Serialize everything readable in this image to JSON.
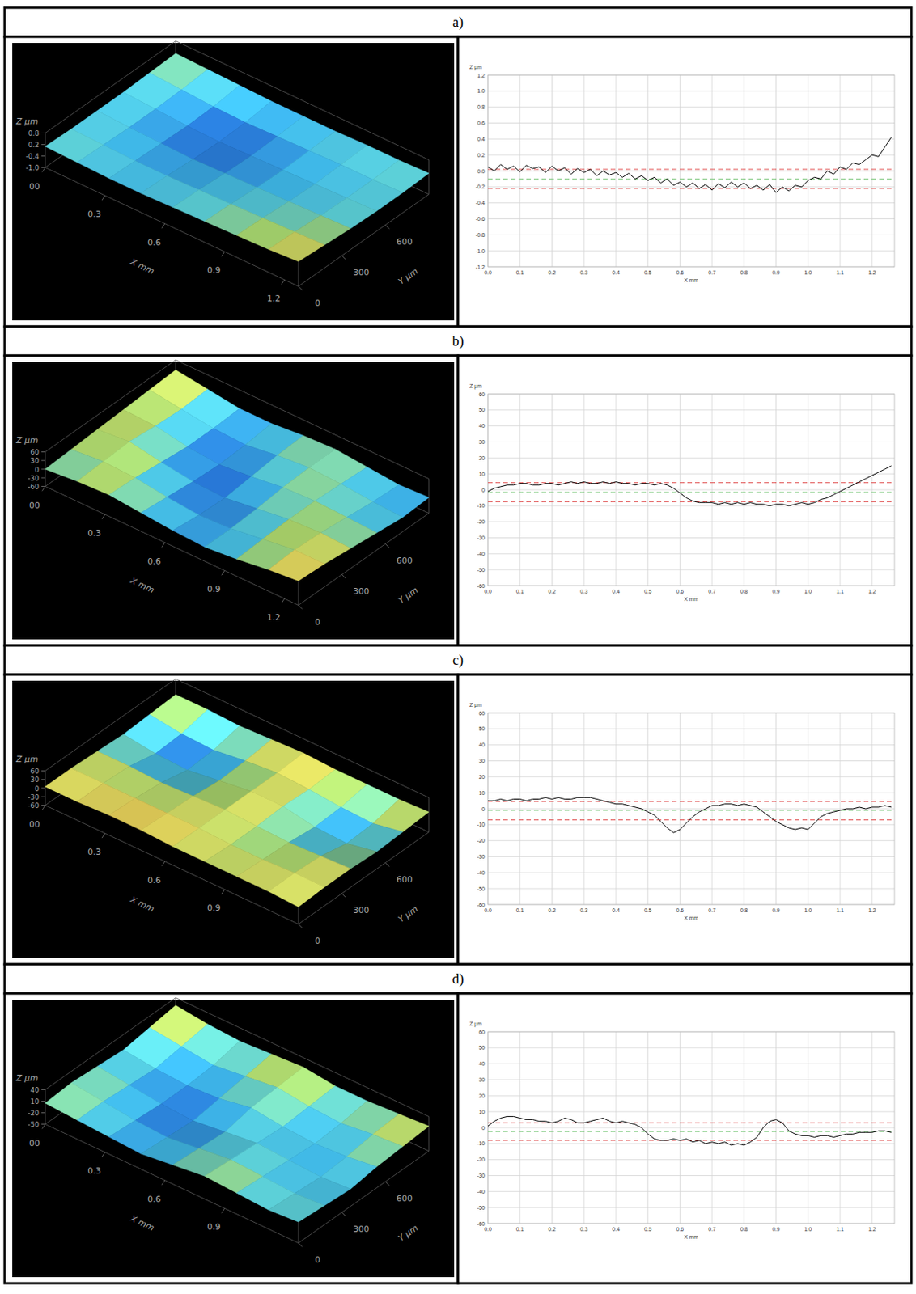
{
  "panel_labels": [
    "a)",
    "b)",
    "c)",
    "d)"
  ],
  "chart_data": [
    {
      "type": "surface",
      "x_label": "X mm",
      "y_label": "Y µm",
      "z_label": "Z µm",
      "xlim": [
        0,
        1.27
      ],
      "ylim": [
        0,
        900
      ],
      "zlim": [
        -1,
        0.8
      ],
      "xticks": [
        {
          "value": 0,
          "label": "00"
        },
        0.3,
        0.6,
        0.9,
        1.2
      ],
      "yticks": [
        0,
        300,
        600
      ],
      "zticks": [
        0.8,
        0.2,
        -0.4,
        {
          "value": -1,
          "label": "-1.0"
        }
      ],
      "x": [
        0,
        0.16,
        0.32,
        0.48,
        0.64,
        0.8,
        0.96,
        1.12,
        1.27
      ],
      "y": [
        0,
        180,
        360,
        540,
        720,
        900
      ],
      "z": [
        [
          0.1,
          0.05,
          0,
          0,
          0.05,
          0.1,
          0.15,
          0.2,
          0.3
        ],
        [
          0.05,
          0,
          -0.05,
          -0.05,
          0,
          0.05,
          0.1,
          0.15,
          0.2
        ],
        [
          0.05,
          -0.05,
          -0.1,
          -0.15,
          -0.1,
          -0.05,
          0,
          0.05,
          0.1
        ],
        [
          0.05,
          -0.05,
          -0.15,
          -0.2,
          -0.15,
          -0.1,
          -0.05,
          0,
          0.05
        ],
        [
          0.1,
          0,
          -0.1,
          -0.15,
          -0.1,
          -0.05,
          0,
          0,
          0.05
        ],
        [
          0.15,
          0.1,
          0.05,
          0,
          0,
          0,
          0.05,
          0.05,
          0.1
        ]
      ]
    },
    {
      "type": "line",
      "x_label": "X mm",
      "y_label": "Z µm",
      "xlim": [
        0,
        1.27
      ],
      "ylim": [
        -1.2,
        1.2
      ],
      "grid": true,
      "xticks": [
        {
          "value": 0,
          "label": "0.0"
        },
        0.1,
        0.2,
        0.3,
        0.4,
        0.5,
        0.6,
        0.7,
        0.8,
        0.9,
        {
          "value": 1,
          "label": "1.0"
        },
        1.1,
        1.2
      ],
      "yticks": [
        1.2,
        {
          "value": 1,
          "label": "1.0"
        },
        0.8,
        0.6,
        0.4,
        0.2,
        {
          "value": 0,
          "label": "0.0"
        },
        -0.2,
        -0.4,
        -0.6,
        -0.8,
        {
          "value": -1,
          "label": "-1.0"
        },
        -1.2
      ],
      "x": [
        0,
        0.02,
        0.04,
        0.06,
        0.08,
        0.1,
        0.12,
        0.14,
        0.16,
        0.18,
        0.2,
        0.22,
        0.24,
        0.26,
        0.28,
        0.3,
        0.32,
        0.34,
        0.36,
        0.38,
        0.4,
        0.42,
        0.44,
        0.46,
        0.48,
        0.5,
        0.52,
        0.54,
        0.56,
        0.58,
        0.6,
        0.62,
        0.64,
        0.66,
        0.68,
        0.7,
        0.72,
        0.74,
        0.76,
        0.78,
        0.8,
        0.82,
        0.84,
        0.86,
        0.88,
        0.9,
        0.92,
        0.94,
        0.96,
        0.98,
        1.0,
        1.02,
        1.04,
        1.06,
        1.08,
        1.1,
        1.12,
        1.14,
        1.16,
        1.18,
        1.2,
        1.22,
        1.24,
        1.26
      ],
      "series": [
        {
          "color": "#000000",
          "values": [
            0.05,
            0.0,
            0.08,
            0.02,
            0.06,
            -0.01,
            0.07,
            0.03,
            0.05,
            -0.02,
            0.06,
            0.0,
            0.04,
            -0.04,
            0.03,
            -0.02,
            0.02,
            -0.06,
            0.0,
            -0.05,
            -0.02,
            -0.08,
            -0.03,
            -0.1,
            -0.06,
            -0.12,
            -0.08,
            -0.15,
            -0.1,
            -0.18,
            -0.14,
            -0.2,
            -0.15,
            -0.22,
            -0.17,
            -0.24,
            -0.16,
            -0.21,
            -0.14,
            -0.2,
            -0.15,
            -0.22,
            -0.18,
            -0.24,
            -0.17,
            -0.27,
            -0.2,
            -0.25,
            -0.18,
            -0.2,
            -0.12,
            -0.08,
            -0.1,
            0.0,
            -0.04,
            0.05,
            0.02,
            0.1,
            0.08,
            0.14,
            0.2,
            0.18,
            0.3,
            0.42
          ]
        }
      ],
      "reference_lines": [
        {
          "value": 0.02,
          "color": "#e05050",
          "line_style": "dashed"
        },
        {
          "value": -0.1,
          "color": "#7fc97f",
          "line_style": "dashed"
        },
        {
          "value": -0.22,
          "color": "#e05050",
          "line_style": "dashed"
        }
      ]
    },
    {
      "type": "surface",
      "x_label": "X mm",
      "y_label": "Y µm",
      "z_label": "Z µm",
      "xlim": [
        0,
        1.27
      ],
      "ylim": [
        0,
        900
      ],
      "zlim": [
        -60,
        60
      ],
      "xticks": [
        {
          "value": 0,
          "label": "00"
        },
        0.3,
        0.6,
        0.9,
        1.2
      ],
      "yticks": [
        0,
        300,
        600
      ],
      "zticks": [
        60,
        30,
        0,
        -30,
        -60
      ],
      "x": [
        0,
        0.16,
        0.32,
        0.48,
        0.64,
        0.8,
        0.96,
        1.12,
        1.27
      ],
      "y": [
        0,
        180,
        360,
        540,
        720,
        900
      ],
      "z": [
        [
          0,
          10,
          15,
          5,
          -5,
          -10,
          0,
          15,
          25
        ],
        [
          5,
          15,
          10,
          -5,
          -15,
          -10,
          5,
          20,
          20
        ],
        [
          10,
          20,
          0,
          -15,
          -20,
          -5,
          10,
          15,
          10
        ],
        [
          15,
          10,
          -10,
          -20,
          -10,
          5,
          10,
          5,
          0
        ],
        [
          20,
          5,
          -10,
          -15,
          0,
          10,
          5,
          -5,
          -10
        ],
        [
          25,
          10,
          -5,
          -5,
          5,
          10,
          0,
          -10,
          -5
        ]
      ]
    },
    {
      "type": "line",
      "x_label": "X mm",
      "y_label": "Z µm",
      "xlim": [
        0,
        1.27
      ],
      "ylim": [
        -60,
        60
      ],
      "grid": true,
      "xticks": [
        {
          "value": 0,
          "label": "0.0"
        },
        0.1,
        0.2,
        0.3,
        0.4,
        0.5,
        0.6,
        0.7,
        0.8,
        0.9,
        {
          "value": 1,
          "label": "1.0"
        },
        1.1,
        1.2
      ],
      "yticks": [
        60,
        50,
        40,
        30,
        20,
        10,
        0,
        -10,
        -20,
        -30,
        -40,
        -50,
        -60
      ],
      "x": [
        0,
        0.02,
        0.04,
        0.06,
        0.08,
        0.1,
        0.12,
        0.14,
        0.16,
        0.18,
        0.2,
        0.22,
        0.24,
        0.26,
        0.28,
        0.3,
        0.32,
        0.34,
        0.36,
        0.38,
        0.4,
        0.42,
        0.44,
        0.46,
        0.48,
        0.5,
        0.52,
        0.54,
        0.56,
        0.58,
        0.6,
        0.62,
        0.64,
        0.66,
        0.68,
        0.7,
        0.72,
        0.74,
        0.76,
        0.78,
        0.8,
        0.82,
        0.84,
        0.86,
        0.88,
        0.9,
        0.92,
        0.94,
        0.96,
        0.98,
        1.0,
        1.02,
        1.04,
        1.06,
        1.08,
        1.1,
        1.12,
        1.14,
        1.16,
        1.18,
        1.2,
        1.22,
        1.24,
        1.26
      ],
      "series": [
        {
          "color": "#000000",
          "values": [
            -1,
            1,
            2,
            3,
            3,
            4,
            4,
            3,
            3,
            4,
            4,
            3,
            4,
            5,
            4,
            5,
            4,
            4,
            5,
            4,
            5,
            4,
            4,
            3,
            4,
            4,
            3,
            4,
            3,
            1,
            -2,
            -5,
            -7,
            -8,
            -8,
            -8,
            -9,
            -8,
            -9,
            -8,
            -9,
            -8,
            -9,
            -9,
            -10,
            -9,
            -9,
            -10,
            -9,
            -8,
            -9,
            -8,
            -6,
            -5,
            -3,
            -1,
            1,
            3,
            5,
            7,
            9,
            11,
            13,
            15
          ]
        }
      ],
      "reference_lines": [
        {
          "value": 4.5,
          "color": "#e05050",
          "line_style": "dashed"
        },
        {
          "value": -1.5,
          "color": "#7fc97f",
          "line_style": "dashed"
        },
        {
          "value": -7.5,
          "color": "#e05050",
          "line_style": "dashed"
        }
      ]
    },
    {
      "type": "surface",
      "x_label": "X mm",
      "y_label": "Y µm",
      "z_label": "Z µm",
      "xlim": [
        0,
        1.27
      ],
      "ylim": [
        0,
        900
      ],
      "zlim": [
        -60,
        60
      ],
      "xticks": [
        {
          "value": 0,
          "label": "00"
        },
        0.3,
        0.6,
        0.9
      ],
      "yticks": [
        0,
        300,
        600
      ],
      "zticks": [
        60,
        30,
        0,
        -30,
        -60
      ],
      "x": [
        0,
        0.16,
        0.32,
        0.48,
        0.64,
        0.8,
        0.96,
        1.12,
        1.27
      ],
      "y": [
        0,
        180,
        360,
        540,
        720,
        900
      ],
      "z": [
        [
          5,
          5,
          10,
          10,
          5,
          5,
          5,
          5,
          0
        ],
        [
          5,
          5,
          5,
          5,
          5,
          0,
          0,
          5,
          5
        ],
        [
          0,
          0,
          -5,
          0,
          5,
          0,
          -5,
          0,
          5
        ],
        [
          -5,
          -20,
          -25,
          -10,
          5,
          5,
          -15,
          -20,
          0
        ],
        [
          0,
          -15,
          -20,
          -5,
          5,
          0,
          -10,
          -15,
          5
        ],
        [
          5,
          5,
          0,
          5,
          10,
          5,
          5,
          5,
          10
        ]
      ]
    },
    {
      "type": "line",
      "x_label": "X mm",
      "y_label": "Z µm",
      "xlim": [
        0,
        1.27
      ],
      "ylim": [
        -60,
        60
      ],
      "grid": true,
      "xticks": [
        {
          "value": 0,
          "label": "0.0"
        },
        0.1,
        0.2,
        0.3,
        0.4,
        0.5,
        0.6,
        0.7,
        0.8,
        0.9,
        {
          "value": 1,
          "label": "1.0"
        },
        1.1,
        1.2
      ],
      "yticks": [
        60,
        50,
        40,
        30,
        20,
        10,
        0,
        -10,
        -20,
        -30,
        -40,
        -50,
        -60
      ],
      "x": [
        0,
        0.02,
        0.04,
        0.06,
        0.08,
        0.1,
        0.12,
        0.14,
        0.16,
        0.18,
        0.2,
        0.22,
        0.24,
        0.26,
        0.28,
        0.3,
        0.32,
        0.34,
        0.36,
        0.38,
        0.4,
        0.42,
        0.44,
        0.46,
        0.48,
        0.5,
        0.52,
        0.54,
        0.56,
        0.58,
        0.6,
        0.62,
        0.64,
        0.66,
        0.68,
        0.7,
        0.72,
        0.74,
        0.76,
        0.78,
        0.8,
        0.82,
        0.84,
        0.86,
        0.88,
        0.9,
        0.92,
        0.94,
        0.96,
        0.98,
        1.0,
        1.02,
        1.04,
        1.06,
        1.08,
        1.1,
        1.12,
        1.14,
        1.16,
        1.18,
        1.2,
        1.22,
        1.24,
        1.26
      ],
      "series": [
        {
          "color": "#000000",
          "values": [
            5,
            5,
            6,
            5,
            6,
            6,
            5,
            6,
            6,
            7,
            6,
            7,
            6,
            6,
            7,
            7,
            7,
            6,
            5,
            4,
            3,
            3,
            2,
            1,
            0,
            -2,
            -4,
            -8,
            -12,
            -15,
            -13,
            -9,
            -5,
            -2,
            0,
            2,
            2,
            3,
            3,
            2,
            3,
            2,
            1,
            -2,
            -5,
            -8,
            -10,
            -12,
            -13,
            -12,
            -13,
            -9,
            -5,
            -3,
            -2,
            -1,
            0,
            0,
            1,
            0,
            1,
            1,
            2,
            1
          ]
        }
      ],
      "reference_lines": [
        {
          "value": 4.5,
          "color": "#e05050",
          "line_style": "dashed"
        },
        {
          "value": -1,
          "color": "#7fc97f",
          "line_style": "dashed"
        },
        {
          "value": -7,
          "color": "#e05050",
          "line_style": "dashed"
        }
      ]
    },
    {
      "type": "surface",
      "x_label": "X mm",
      "y_label": "Y µm",
      "z_label": "Z µm",
      "xlim": [
        0,
        1.27
      ],
      "ylim": [
        0,
        900
      ],
      "zlim": [
        -50,
        40
      ],
      "xticks": [
        {
          "value": 0,
          "label": "00"
        },
        0.3,
        0.6,
        0.9
      ],
      "yticks": [
        0,
        300,
        600
      ],
      "zticks": [
        40,
        10,
        -20,
        -50
      ],
      "x": [
        0,
        0.16,
        0.32,
        0.48,
        0.64,
        0.8,
        0.96,
        1.12,
        1.27
      ],
      "y": [
        0,
        180,
        360,
        540,
        720,
        900
      ],
      "z": [
        [
          5,
          0,
          -5,
          -10,
          0,
          10,
          5,
          0,
          5
        ],
        [
          10,
          0,
          -10,
          -15,
          -5,
          5,
          0,
          -5,
          0
        ],
        [
          5,
          -5,
          -15,
          -20,
          -10,
          0,
          -5,
          -10,
          -5
        ],
        [
          0,
          -10,
          -15,
          -10,
          5,
          -5,
          -10,
          -5,
          5
        ],
        [
          10,
          0,
          -10,
          0,
          10,
          0,
          -5,
          5,
          10
        ],
        [
          20,
          10,
          5,
          10,
          15,
          5,
          5,
          10,
          15
        ]
      ]
    },
    {
      "type": "line",
      "x_label": "X mm",
      "y_label": "Z µm",
      "xlim": [
        0,
        1.27
      ],
      "ylim": [
        -60,
        60
      ],
      "grid": true,
      "xticks": [
        {
          "value": 0,
          "label": "0.0"
        },
        0.1,
        0.2,
        0.3,
        0.4,
        0.5,
        0.6,
        0.7,
        0.8,
        0.9,
        {
          "value": 1,
          "label": "1.0"
        },
        1.1,
        1.2
      ],
      "yticks": [
        60,
        50,
        40,
        30,
        20,
        10,
        0,
        -10,
        -20,
        -30,
        -40,
        -50,
        -60
      ],
      "x": [
        0,
        0.02,
        0.04,
        0.06,
        0.08,
        0.1,
        0.12,
        0.14,
        0.16,
        0.18,
        0.2,
        0.22,
        0.24,
        0.26,
        0.28,
        0.3,
        0.32,
        0.34,
        0.36,
        0.38,
        0.4,
        0.42,
        0.44,
        0.46,
        0.48,
        0.5,
        0.52,
        0.54,
        0.56,
        0.58,
        0.6,
        0.62,
        0.64,
        0.66,
        0.68,
        0.7,
        0.72,
        0.74,
        0.76,
        0.78,
        0.8,
        0.82,
        0.84,
        0.86,
        0.88,
        0.9,
        0.92,
        0.94,
        0.96,
        0.98,
        1.0,
        1.02,
        1.04,
        1.06,
        1.08,
        1.1,
        1.12,
        1.14,
        1.16,
        1.18,
        1.2,
        1.22,
        1.24,
        1.26
      ],
      "series": [
        {
          "color": "#000000",
          "values": [
            1,
            4,
            6,
            7,
            7,
            6,
            5,
            5,
            4,
            4,
            3,
            4,
            6,
            5,
            3,
            3,
            4,
            5,
            6,
            4,
            3,
            4,
            3,
            2,
            0,
            -4,
            -7,
            -8,
            -8,
            -7,
            -8,
            -7,
            -9,
            -8,
            -10,
            -9,
            -10,
            -9,
            -11,
            -10,
            -11,
            -9,
            -6,
            0,
            4,
            5,
            3,
            -2,
            -4,
            -5,
            -5,
            -6,
            -5,
            -5,
            -6,
            -5,
            -4,
            -4,
            -3,
            -3,
            -3,
            -2,
            -2,
            -3
          ]
        }
      ],
      "reference_lines": [
        {
          "value": 3,
          "color": "#e05050",
          "line_style": "dashed"
        },
        {
          "value": -2.5,
          "color": "#7fc97f",
          "line_style": "dashed"
        },
        {
          "value": -8,
          "color": "#e05050",
          "line_style": "dashed"
        }
      ]
    }
  ]
}
